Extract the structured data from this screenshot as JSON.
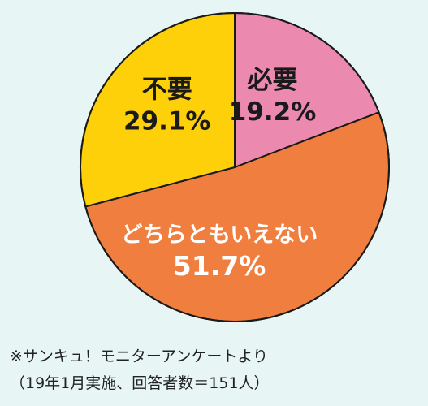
{
  "chart_data": {
    "type": "pie",
    "slices": [
      {
        "label": "必要",
        "value": 19.2,
        "value_text": "19.2%",
        "color": "#ec89ae"
      },
      {
        "label": "どちらともいえない",
        "value": 51.7,
        "value_text": "51.7%",
        "color": "#f07e3e"
      },
      {
        "label": "不要",
        "value": 29.1,
        "value_text": "29.1%",
        "color": "#fdd00a"
      }
    ],
    "start": "top (12 o'clock)",
    "direction": "clockwise"
  },
  "notes": {
    "source": "※サンキュ！モニターアンケートより",
    "sample": "（19年1月実施、回答者数＝151人）"
  },
  "colors": {
    "background": "#e8f5f5",
    "outline": "#1a1a1a"
  }
}
